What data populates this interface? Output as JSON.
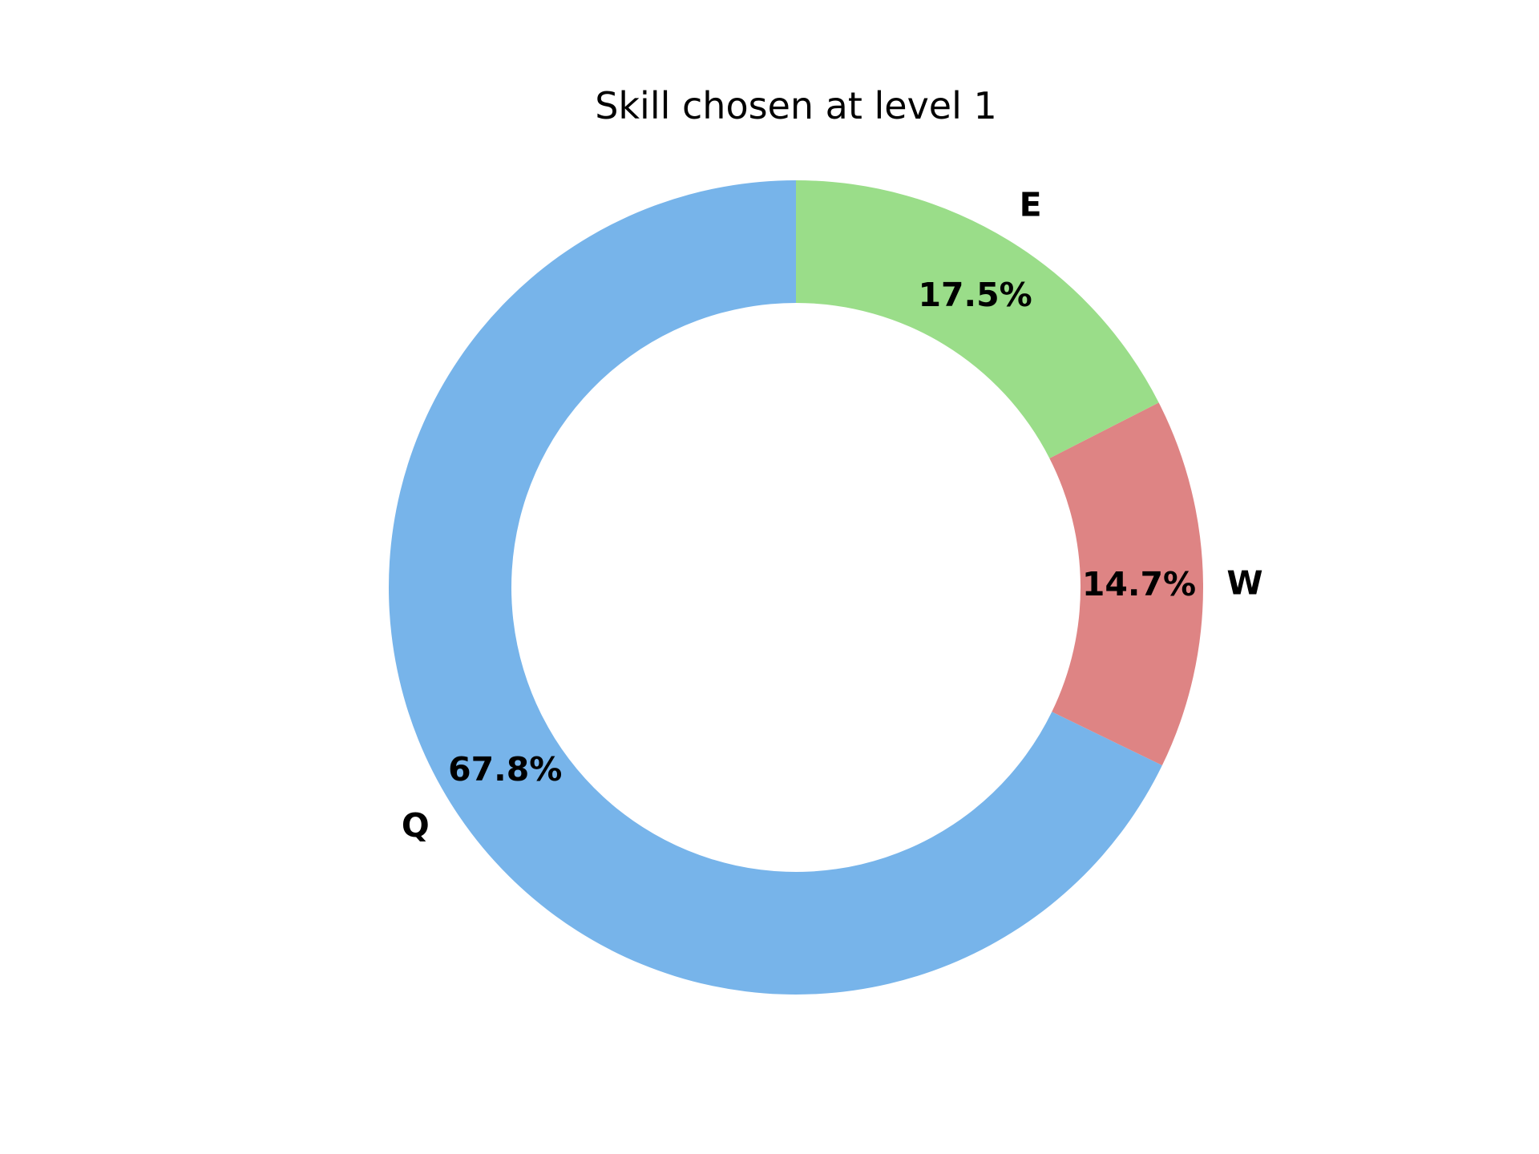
{
  "chart_data": {
    "type": "pie",
    "title": "Skill chosen at level 1",
    "donut": true,
    "categories": [
      "Q",
      "W",
      "E"
    ],
    "values": [
      67.8,
      14.7,
      17.5
    ],
    "value_labels": [
      "67.8%",
      "14.7%",
      "17.5%"
    ],
    "colors": [
      "#77b4ea",
      "#de8484",
      "#9add89"
    ],
    "start_angle_deg": 90,
    "direction": "counterclockwise",
    "legend": "none"
  }
}
